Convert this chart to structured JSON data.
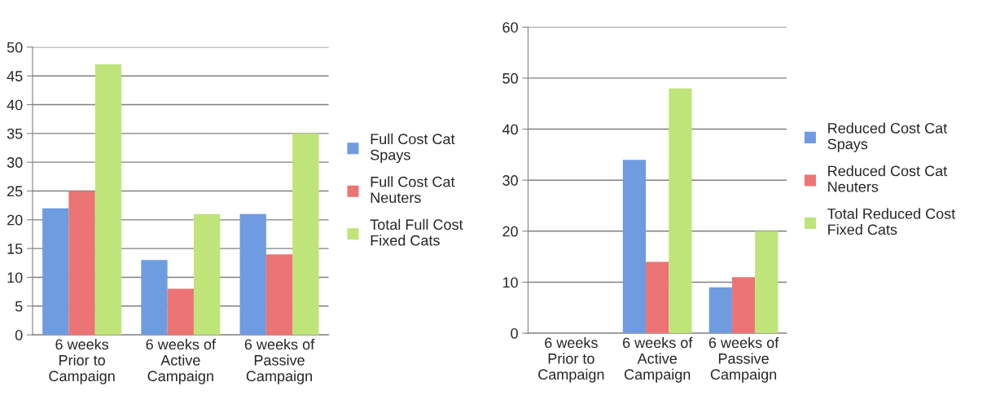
{
  "chart_data": [
    {
      "type": "bar",
      "categories": [
        "6 weeks\nPrior to\nCampaign",
        "6 weeks of\nActive\nCampaign",
        "6 weeks of\nPassive\nCampaign"
      ],
      "series": [
        {
          "name": "Full Cost Cat\nSpays",
          "color": "#6f9be0",
          "values": [
            22,
            13,
            21
          ]
        },
        {
          "name": "Full Cost Cat\nNeuters",
          "color": "#ec7474",
          "values": [
            25,
            8,
            14
          ]
        },
        {
          "name": "Total Full Cost\nFixed Cats",
          "color": "#bfe47a",
          "values": [
            47,
            21,
            35
          ]
        }
      ],
      "ylim": [
        0,
        50
      ],
      "yticks": [
        0,
        5,
        10,
        15,
        20,
        25,
        30,
        35,
        40,
        45,
        50
      ],
      "grid": "y",
      "legend": "right"
    },
    {
      "type": "bar",
      "categories": [
        "6 weeks\nPrior to\nCampaign",
        "6 weeks of\nActive\nCampaign",
        "6 weeks of\nPassive\nCampaign"
      ],
      "series": [
        {
          "name": "Reduced Cost Cat\nSpays",
          "color": "#6f9be0",
          "values": [
            0,
            34,
            9
          ]
        },
        {
          "name": "Reduced Cost Cat\nNeuters",
          "color": "#ec7474",
          "values": [
            0,
            14,
            11
          ]
        },
        {
          "name": "Total Reduced Cost\nFixed Cats",
          "color": "#bfe47a",
          "values": [
            0,
            48,
            20
          ]
        }
      ],
      "ylim": [
        0,
        60
      ],
      "yticks": [
        0,
        10,
        20,
        30,
        40,
        50,
        60
      ],
      "grid": "y",
      "legend": "right"
    }
  ]
}
